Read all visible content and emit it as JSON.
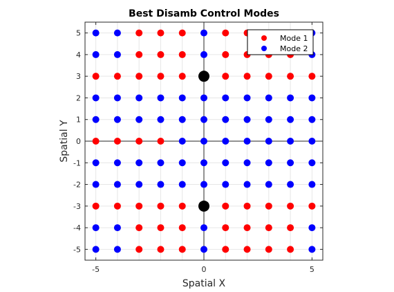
{
  "chart_data": {
    "type": "scatter",
    "title": "Best Disamb Control Modes",
    "xlabel": "Spatial X",
    "ylabel": "Spatial Y",
    "xlim": [
      -5.5,
      5.5
    ],
    "ylim": [
      -5.5,
      5.5
    ],
    "xticks": [
      "-5",
      "0",
      "5"
    ],
    "yticks": [
      "-5",
      "-4",
      "-3",
      "-2",
      "-1",
      "0",
      "1",
      "2",
      "3",
      "4",
      "5"
    ],
    "grid": true,
    "legend_placement": "top-right",
    "x_values": [
      -5,
      -4,
      -3,
      -2,
      -1,
      0,
      1,
      2,
      3,
      4,
      5
    ],
    "y_values": [
      5,
      4,
      3,
      2,
      1,
      0,
      -1,
      -2,
      -3,
      -4,
      -5
    ],
    "mode_grid_rows_top_to_bottom": [
      [
        2,
        2,
        1,
        1,
        1,
        2,
        1,
        1,
        1,
        1,
        2
      ],
      [
        2,
        2,
        1,
        1,
        1,
        2,
        1,
        1,
        1,
        1,
        2
      ],
      [
        1,
        1,
        1,
        1,
        1,
        1,
        1,
        1,
        1,
        1,
        1
      ],
      [
        2,
        2,
        2,
        2,
        2,
        2,
        2,
        2,
        2,
        2,
        2
      ],
      [
        2,
        2,
        2,
        2,
        2,
        2,
        2,
        2,
        2,
        2,
        2
      ],
      [
        1,
        1,
        1,
        1,
        2,
        2,
        2,
        2,
        2,
        2,
        2
      ],
      [
        2,
        2,
        2,
        2,
        2,
        2,
        2,
        2,
        2,
        2,
        2
      ],
      [
        2,
        2,
        2,
        2,
        2,
        2,
        2,
        2,
        2,
        2,
        2
      ],
      [
        1,
        1,
        1,
        1,
        1,
        1,
        1,
        1,
        1,
        1,
        1
      ],
      [
        2,
        2,
        1,
        1,
        1,
        2,
        1,
        1,
        1,
        1,
        2
      ],
      [
        2,
        2,
        1,
        1,
        1,
        2,
        1,
        1,
        1,
        1,
        2
      ]
    ],
    "series": [
      {
        "name": "Mode 1",
        "color": "#ff0000"
      },
      {
        "name": "Mode 2",
        "color": "#0000ff"
      }
    ],
    "highlight_points": [
      {
        "x": 0,
        "y": 3,
        "color": "#000000"
      },
      {
        "x": 0,
        "y": -3,
        "color": "#000000"
      }
    ]
  }
}
